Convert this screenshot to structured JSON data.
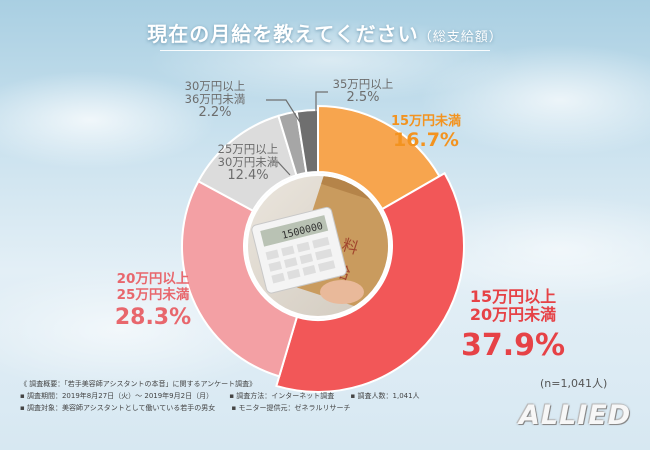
{
  "title": "現在の月給を教えてください",
  "title_sub": "（総支給額）",
  "sample_size": "(n=1,041人)",
  "chart_data": {
    "type": "pie",
    "donut": true,
    "title": "現在の月給を教えてください（総支給額）",
    "slices": [
      {
        "line1": "15万円未満",
        "line2": "",
        "value": 16.7,
        "pct_label": "16.7%",
        "color": "#f7a54e"
      },
      {
        "line1": "15万円以上",
        "line2": "20万円未満",
        "value": 37.9,
        "pct_label": "37.9%",
        "color": "#f25758"
      },
      {
        "line1": "20万円以上",
        "line2": "25万円未満",
        "value": 28.3,
        "pct_label": "28.3%",
        "color": "#f3a0a4"
      },
      {
        "line1": "25万円以上",
        "line2": "30万円未満",
        "value": 12.4,
        "pct_label": "12.4%",
        "color": "#dcdcdc"
      },
      {
        "line1": "30万円以上",
        "line2": "36万円未満",
        "value": 2.2,
        "pct_label": "2.2%",
        "color": "#a6a6a6"
      },
      {
        "line1": "35万円以上",
        "line2": "",
        "value": 2.5,
        "pct_label": "2.5%",
        "color": "#6f6f6f"
      }
    ]
  },
  "notes": {
    "header": "《 調査概要：「若手美容師アシスタントの本音」に関するアンケート調査》",
    "period": "▪ 調査期間：2019年8月27日（火）～ 2019年9月2日（月）",
    "method": "▪ 調査方法：インターネット調査",
    "count": "▪ 調査人数：1,041人",
    "target": "▪ 調査対象：美容師アシスタントとして働いている若手の男女",
    "monitor": "▪ モニター提供元：ゼネラルリサーチ"
  },
  "logo": "ALLIED",
  "photo": {
    "receipt_text_1": "給",
    "receipt_text_2": "料",
    "calc_display": "1500000"
  }
}
